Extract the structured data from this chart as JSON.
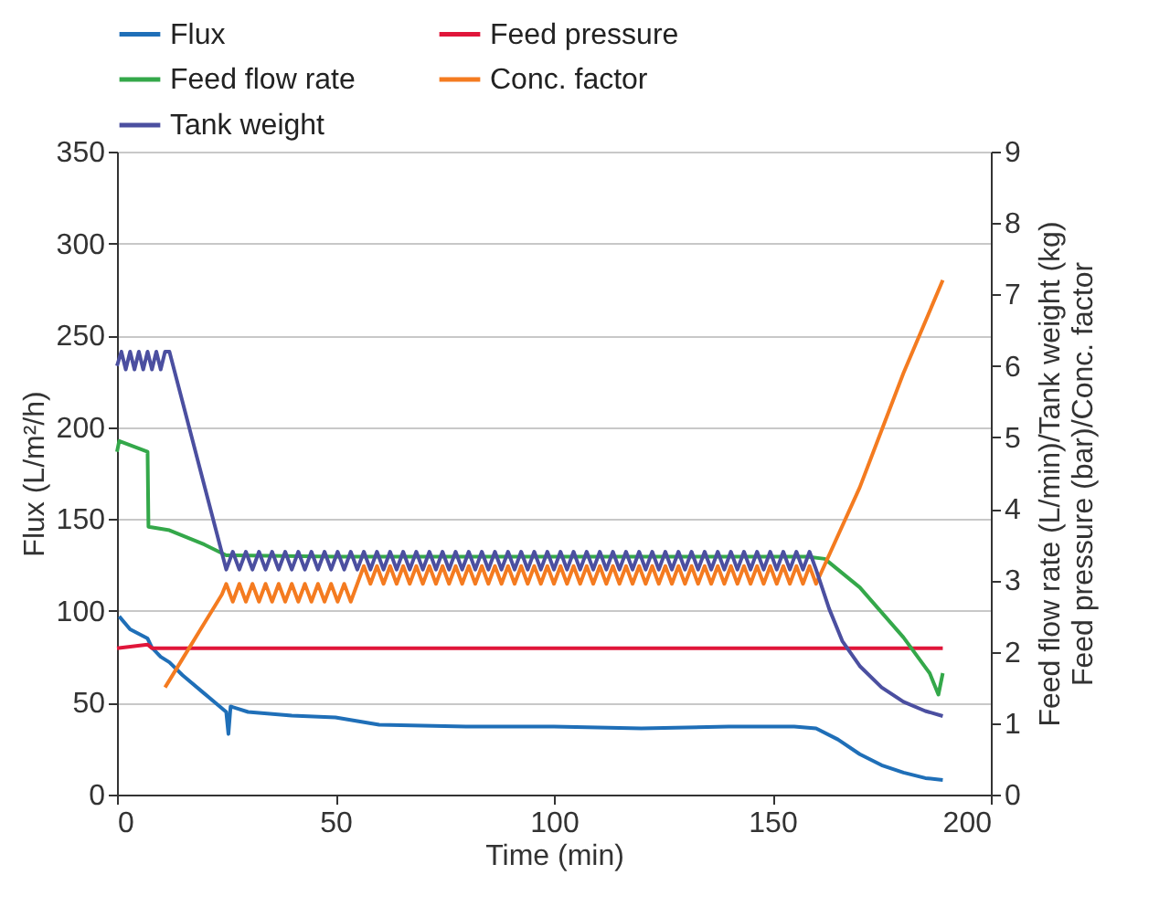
{
  "chart_data": {
    "type": "line",
    "xlabel": "Time (min)",
    "ylabel": "Flux (L/m²/h)",
    "y2label": "Feed flow rate (L/min)/Tank weight (kg)\nFeed pressure (bar)/Conc. factor",
    "xlim": [
      0,
      200
    ],
    "xticks": [
      0,
      50,
      100,
      150,
      200
    ],
    "ylim": [
      0,
      350
    ],
    "yticks": [
      0,
      50,
      100,
      150,
      200,
      250,
      300,
      350
    ],
    "y2lim": [
      0,
      9
    ],
    "y2ticks": [
      0,
      1,
      2,
      3,
      4,
      5,
      6,
      7,
      8,
      9
    ],
    "grid": "y",
    "legend": "top",
    "series": [
      {
        "name": "Flux",
        "color": "#1f6fb8",
        "x": [
          0.5,
          3,
          7,
          8,
          10,
          12,
          15,
          20,
          25,
          25.5,
          26,
          30,
          40,
          50,
          55,
          60,
          80,
          100,
          120,
          140,
          155,
          160,
          165,
          170,
          175,
          180,
          185,
          189
        ],
        "values": [
          97,
          90,
          85,
          80,
          75,
          72,
          65,
          55,
          45,
          33,
          48,
          45,
          43,
          42,
          40,
          38,
          37,
          37,
          36,
          37,
          37,
          36,
          30,
          22,
          16,
          12,
          9,
          8
        ]
      },
      {
        "name": "Feed pressure",
        "color": "#e0163a",
        "axis": "y2",
        "x": [
          0,
          7,
          8,
          189
        ],
        "values": [
          2.05,
          2.1,
          2.05,
          2.05
        ]
      },
      {
        "name": "Feed flow rate",
        "color": "#34a84a",
        "axis": "y2",
        "x": [
          0,
          0.5,
          7,
          7.2,
          12,
          20,
          25,
          50,
          100,
          158,
          162,
          170,
          180,
          186,
          188,
          189
        ],
        "values": [
          4.8,
          4.95,
          4.8,
          3.75,
          3.7,
          3.5,
          3.35,
          3.33,
          3.33,
          3.33,
          3.3,
          2.9,
          2.2,
          1.7,
          1.4,
          1.7
        ]
      },
      {
        "name": "Conc. factor",
        "color": "#f47b20",
        "axis": "y2",
        "x": [
          11,
          15,
          20,
          24,
          25,
          26.5,
          28,
          29.5,
          31,
          32.5,
          34,
          35.5,
          37,
          38.5,
          40,
          41.5,
          43,
          44.5,
          46,
          47.5,
          49,
          50.5,
          52,
          53.5,
          55,
          56.5,
          58,
          59.5,
          61,
          62.5,
          64,
          65.5,
          67,
          68.5,
          70,
          71.5,
          73,
          74.5,
          76,
          77.5,
          79,
          80.5,
          82,
          83.5,
          85,
          86.5,
          88,
          89.5,
          91,
          92.5,
          94,
          95.5,
          97,
          98.5,
          100,
          101.5,
          103,
          104.5,
          106,
          107.5,
          109,
          110.5,
          112,
          113.5,
          115,
          116.5,
          118,
          119.5,
          121,
          122.5,
          124,
          125.5,
          127,
          128.5,
          130,
          131.5,
          133,
          134.5,
          136,
          137.5,
          139,
          140.5,
          142,
          143.5,
          145,
          146.5,
          148,
          149.5,
          151,
          152.5,
          154,
          155.5,
          157,
          158.5,
          160,
          170,
          180,
          189
        ],
        "values": [
          1.5,
          1.9,
          2.4,
          2.8,
          2.95,
          2.7,
          2.95,
          2.7,
          2.95,
          2.7,
          2.95,
          2.7,
          2.95,
          2.7,
          2.95,
          2.7,
          2.95,
          2.7,
          2.95,
          2.7,
          2.95,
          2.7,
          2.95,
          2.7,
          2.95,
          3.2,
          2.95,
          3.2,
          2.95,
          3.2,
          2.95,
          3.2,
          2.95,
          3.2,
          2.95,
          3.2,
          2.95,
          3.2,
          2.95,
          3.2,
          2.95,
          3.2,
          2.95,
          3.2,
          2.95,
          3.2,
          2.95,
          3.2,
          2.95,
          3.2,
          2.95,
          3.2,
          2.95,
          3.2,
          2.95,
          3.2,
          2.95,
          3.2,
          2.95,
          3.2,
          2.95,
          3.2,
          2.95,
          3.2,
          2.95,
          3.2,
          2.95,
          3.2,
          2.95,
          3.2,
          2.95,
          3.2,
          2.95,
          3.2,
          2.95,
          3.2,
          2.95,
          3.2,
          2.95,
          3.2,
          2.95,
          3.2,
          2.95,
          3.2,
          2.95,
          3.2,
          2.95,
          3.2,
          2.95,
          3.2,
          2.95,
          3.2,
          2.95,
          3.2,
          2.95,
          4.3,
          5.9,
          7.2
        ]
      },
      {
        "name": "Tank weight",
        "color": "#4b4fa0",
        "axis": "y2",
        "x": [
          0,
          1,
          2,
          3,
          4,
          5,
          6,
          7,
          8,
          9,
          10,
          11,
          12,
          25,
          26.5,
          28,
          29.5,
          31,
          32.5,
          34,
          35.5,
          37,
          38.5,
          40,
          41.5,
          43,
          44.5,
          46,
          47.5,
          49,
          50.5,
          52,
          53.5,
          55,
          56.5,
          58,
          59.5,
          61,
          62.5,
          64,
          65.5,
          67,
          68.5,
          70,
          71.5,
          73,
          74.5,
          76,
          77.5,
          79,
          80.5,
          82,
          83.5,
          85,
          86.5,
          88,
          89.5,
          91,
          92.5,
          94,
          95.5,
          97,
          98.5,
          100,
          101.5,
          103,
          104.5,
          106,
          107.5,
          109,
          110.5,
          112,
          113.5,
          115,
          116.5,
          118,
          119.5,
          121,
          122.5,
          124,
          125.5,
          127,
          128.5,
          130,
          131.5,
          133,
          134.5,
          136,
          137.5,
          139,
          140.5,
          142,
          143.5,
          145,
          146.5,
          148,
          149.5,
          151,
          152.5,
          154,
          155.5,
          157,
          158.5,
          160,
          163,
          166,
          170,
          175,
          180,
          185,
          189
        ],
        "values": [
          6.0,
          6.2,
          5.95,
          6.2,
          5.95,
          6.2,
          5.95,
          6.2,
          5.95,
          6.2,
          5.95,
          6.2,
          6.2,
          3.15,
          3.4,
          3.15,
          3.4,
          3.15,
          3.4,
          3.15,
          3.4,
          3.15,
          3.4,
          3.15,
          3.4,
          3.15,
          3.4,
          3.15,
          3.4,
          3.15,
          3.4,
          3.15,
          3.4,
          3.15,
          3.4,
          3.15,
          3.4,
          3.15,
          3.4,
          3.15,
          3.4,
          3.15,
          3.4,
          3.15,
          3.4,
          3.15,
          3.4,
          3.15,
          3.4,
          3.15,
          3.4,
          3.15,
          3.4,
          3.15,
          3.4,
          3.15,
          3.4,
          3.15,
          3.4,
          3.15,
          3.4,
          3.15,
          3.4,
          3.15,
          3.4,
          3.15,
          3.4,
          3.15,
          3.4,
          3.15,
          3.4,
          3.15,
          3.4,
          3.15,
          3.4,
          3.15,
          3.4,
          3.15,
          3.4,
          3.15,
          3.4,
          3.15,
          3.4,
          3.15,
          3.4,
          3.15,
          3.4,
          3.15,
          3.4,
          3.15,
          3.4,
          3.15,
          3.4,
          3.15,
          3.4,
          3.15,
          3.4,
          3.15,
          3.4,
          3.15,
          3.4,
          3.15,
          3.4,
          3.15,
          2.6,
          2.15,
          1.8,
          1.5,
          1.3,
          1.17,
          1.1
        ]
      }
    ]
  }
}
